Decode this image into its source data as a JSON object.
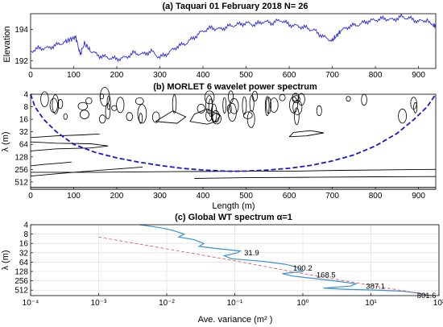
{
  "chart_data": [
    {
      "type": "line",
      "title": "(a) Taquari 01 February 2018 N= 26",
      "ylabel": "Elevation",
      "xlabel": "",
      "xlim": [
        0,
        940
      ],
      "ylim": [
        191.5,
        195
      ],
      "xticks": [
        0,
        100,
        200,
        300,
        400,
        500,
        600,
        700,
        800,
        900
      ],
      "yticks": [
        192,
        194
      ],
      "grid": false,
      "series": [
        {
          "color": "#2b2bd6",
          "x": [
            0,
            20,
            40,
            60,
            80,
            95,
            105,
            115,
            125,
            140,
            160,
            180,
            200,
            220,
            240,
            260,
            280,
            300,
            320,
            340,
            360,
            380,
            400,
            420,
            440,
            460,
            480,
            500,
            520,
            540,
            560,
            580,
            600,
            620,
            640,
            660,
            680,
            700,
            710,
            720,
            740,
            760,
            780,
            800,
            820,
            840,
            860,
            880,
            900,
            920,
            935,
            940
          ],
          "y": [
            192.6,
            192.8,
            192.8,
            193.0,
            193.2,
            193.4,
            193.5,
            192.4,
            193.1,
            192.6,
            192.3,
            192.2,
            192.1,
            192.2,
            192.5,
            192.4,
            192.6,
            192.2,
            192.5,
            192.9,
            193.1,
            193.5,
            193.9,
            194.1,
            194.0,
            194.2,
            194.3,
            194.4,
            194.3,
            194.5,
            194.4,
            194.6,
            194.3,
            194.2,
            194.1,
            193.9,
            193.5,
            193.3,
            193.6,
            193.9,
            194.2,
            194.3,
            194.5,
            194.6,
            194.7,
            194.6,
            194.8,
            194.7,
            194.5,
            194.6,
            194.2,
            194.3
          ]
        }
      ]
    },
    {
      "type": "heatmap",
      "title": "(b) MORLET 6 wavelet power spectrum",
      "xlabel": "Length (m)",
      "ylabel": "λ (m)",
      "xlim": [
        0,
        940
      ],
      "ylim": [
        4,
        768
      ],
      "yscale": "log2",
      "xticks": [
        0,
        100,
        200,
        300,
        400,
        500,
        600,
        700,
        800,
        900
      ],
      "yticks": [
        4,
        8,
        16,
        32,
        64,
        128,
        256,
        512
      ],
      "ytick_labels": [
        "4",
        "8",
        "16",
        "32",
        "64",
        "128",
        "256",
        "512"
      ],
      "grid": false,
      "cone_of_influence": {
        "color": "#1a1ac8",
        "x": [
          0,
          10,
          30,
          60,
          100,
          150,
          200,
          250,
          300,
          350,
          400,
          450,
          470,
          500,
          550,
          600,
          650,
          700,
          750,
          800,
          850,
          890,
          920,
          940
        ],
        "y": [
          4,
          8,
          16,
          32,
          64,
          100,
          135,
          170,
          205,
          240,
          265,
          280,
          284,
          280,
          265,
          240,
          205,
          160,
          115,
          70,
          35,
          16,
          8,
          4
        ]
      },
      "contours": [
        {
          "x": [
            0,
            150,
            330,
            430,
            520,
            620,
            720,
            820,
            940
          ],
          "y": [
            300,
            300,
            290,
            285,
            280,
            280,
            270,
            262,
            255
          ]
        },
        {
          "x": [
            380,
            500,
            650,
            800,
            940
          ],
          "y": [
            420,
            405,
            395,
            385,
            380
          ]
        },
        {
          "x": [
            0,
            100,
            200,
            260
          ],
          "y": [
            370,
            300,
            250,
            225
          ]
        },
        {
          "x": [
            0,
            30,
            70,
            95
          ],
          "y": [
            210,
            195,
            180,
            170
          ]
        },
        {
          "x": [
            0,
            60,
            140,
            180,
            140,
            60,
            0
          ],
          "y": [
            92,
            82,
            78,
            70,
            62,
            60,
            56
          ]
        },
        {
          "x": [
            0,
            60,
            120,
            160
          ],
          "y": [
            44,
            40,
            38,
            36
          ]
        },
        {
          "x": [
            410,
            430,
            440,
            410,
            380,
            370,
            410
          ],
          "y": [
            21,
            18,
            13,
            9,
            12,
            18,
            21
          ]
        },
        {
          "x": [
            600,
            640,
            680,
            650,
            610,
            600
          ],
          "y": [
            42,
            40,
            34,
            30,
            33,
            42
          ]
        },
        {
          "x": [
            290,
            340,
            360,
            330,
            290
          ],
          "y": [
            18,
            20,
            14,
            10,
            18
          ]
        },
        {
          "x": [
            0,
            940
          ],
          "y": [
            760,
            760
          ]
        },
        {
          "x": [
            0,
            940
          ],
          "y": [
            690,
            690
          ]
        }
      ],
      "contour_color": "#000000"
    },
    {
      "type": "line",
      "title": "(c) Global WT spectrum α=1",
      "xlabel": "Ave. variance (m² )",
      "ylabel": "λ (m)",
      "xscale": "log",
      "xlim": [
        0.0001,
        100
      ],
      "ylim": [
        4,
        768
      ],
      "xticks": [
        0.0001,
        0.001,
        0.01,
        0.1,
        1,
        10,
        100
      ],
      "xtick_labels": [
        "10⁻⁴",
        "10⁻³",
        "10⁻²",
        "10⁻¹",
        "10⁰",
        "10¹",
        "10²"
      ],
      "yticks": [
        4,
        8,
        16,
        32,
        64,
        128,
        256,
        512
      ],
      "ytick_labels": [
        "4",
        "8",
        "16",
        "32",
        "64",
        "128",
        "256",
        "512"
      ],
      "grid": true,
      "series": [
        {
          "name": "",
          "color": "#3a8fd0",
          "x": [
            0.004,
            0.008,
            0.012,
            0.018,
            0.015,
            0.025,
            0.035,
            0.03,
            0.06,
            0.12,
            0.11,
            0.07,
            0.09,
            0.25,
            0.55,
            0.85,
            1.0,
            0.5,
            0.7,
            1.6,
            3.0,
            6.0,
            5.0,
            2.0,
            4.0,
            15.0,
            30.0,
            50.0,
            70.0
          ],
          "y": [
            4,
            5,
            6,
            8,
            10,
            12,
            16,
            20,
            24,
            28,
            32,
            40,
            50,
            60,
            75,
            95,
            128,
            150,
            180,
            220,
            260,
            320,
            380,
            440,
            480,
            520,
            560,
            640,
            768
          ]
        },
        {
          "name": "",
          "color": "#e05050",
          "dashed": true,
          "x": [
            0.001,
            0.01,
            0.1,
            1,
            10,
            80
          ],
          "y": [
            10,
            24,
            58,
            150,
            360,
            768
          ]
        }
      ],
      "annotations": [
        {
          "text": "31.9",
          "x": 0.13,
          "y": 32
        },
        {
          "text": "100.2",
          "x": 0.68,
          "y": 100
        },
        {
          "text": "168.5",
          "x": 1.5,
          "y": 168
        },
        {
          "text": "387.1",
          "x": 8.0,
          "y": 387
        },
        {
          "text": "801.6",
          "x": 45.0,
          "y": 760
        }
      ]
    }
  ]
}
